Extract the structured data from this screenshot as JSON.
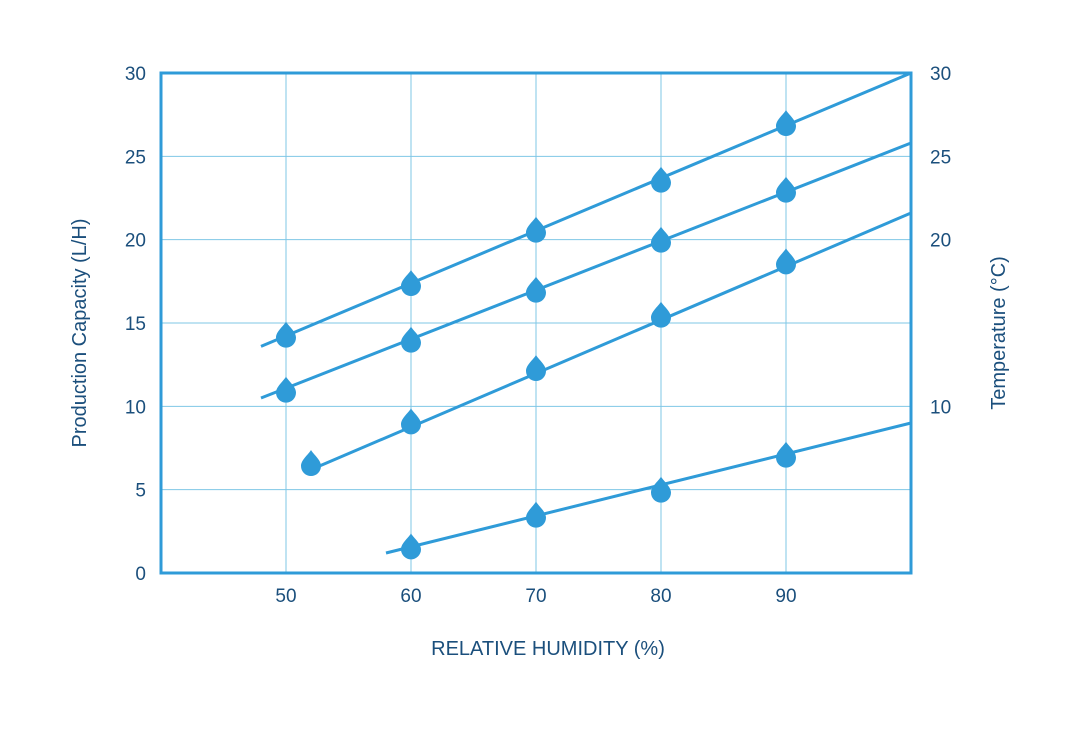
{
  "chart_data": {
    "type": "line",
    "xlabel": "RELATIVE HUMIDITY (%)",
    "ylabel": "Production Capacity (L/H)",
    "y2label": "Temperature (°C)",
    "xlim": [
      40,
      100
    ],
    "ylim": [
      0,
      30
    ],
    "x_ticks": [
      50,
      60,
      70,
      80,
      90
    ],
    "y_ticks": [
      0,
      5,
      10,
      15,
      20,
      25,
      30
    ],
    "y2_ticks": [
      10,
      20,
      25,
      30
    ],
    "grid": true,
    "line_color": "#2f9bd8",
    "marker": "water-drop-icon",
    "series": [
      {
        "line": [
          [
            48,
            13.6
          ],
          [
            100,
            30.0
          ]
        ],
        "points": [
          [
            50,
            14.3
          ],
          [
            60,
            17.4
          ],
          [
            70,
            20.6
          ],
          [
            80,
            23.6
          ],
          [
            90,
            27.0
          ]
        ]
      },
      {
        "line": [
          [
            48,
            10.5
          ],
          [
            100,
            25.8
          ]
        ],
        "points": [
          [
            50,
            11.0
          ],
          [
            60,
            14.0
          ],
          [
            70,
            17.0
          ],
          [
            80,
            20.0
          ],
          [
            90,
            23.0
          ]
        ]
      },
      {
        "line": [
          [
            52,
            6.2
          ],
          [
            100,
            21.6
          ]
        ],
        "points": [
          [
            52,
            6.6
          ],
          [
            60,
            9.1
          ],
          [
            70,
            12.3
          ],
          [
            80,
            15.5
          ],
          [
            90,
            18.7
          ]
        ]
      },
      {
        "line": [
          [
            58,
            1.2
          ],
          [
            100,
            9.0
          ]
        ],
        "points": [
          [
            60,
            1.6
          ],
          [
            70,
            3.5
          ],
          [
            80,
            5.0
          ],
          [
            90,
            7.1
          ]
        ]
      }
    ]
  }
}
